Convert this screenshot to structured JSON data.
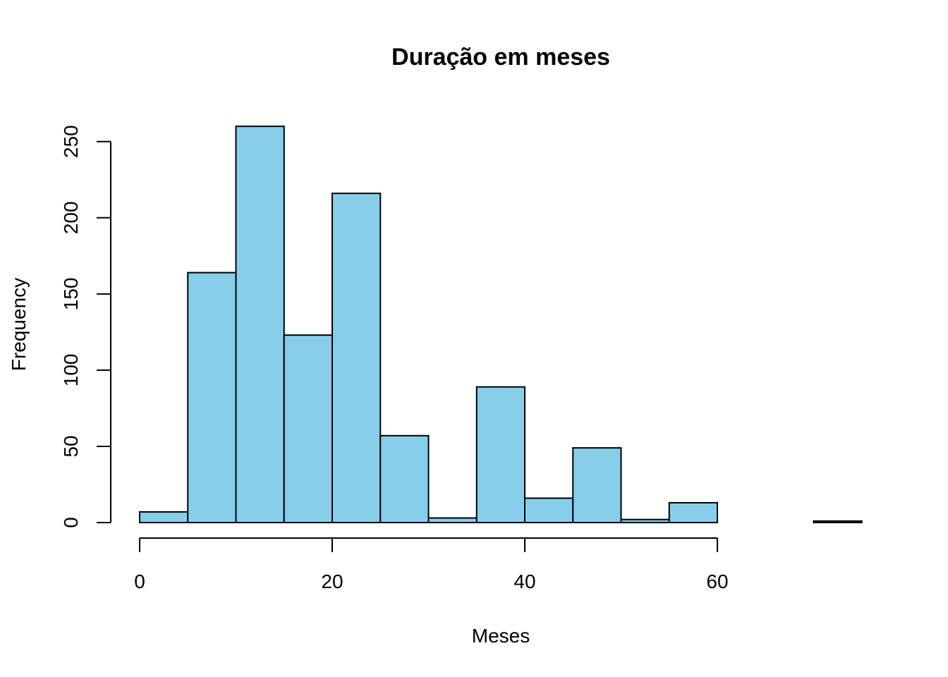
{
  "chart_data": {
    "type": "bar",
    "title": "Duração em meses",
    "xlabel": "Meses",
    "ylabel": "Frequency",
    "bin_edges": [
      0,
      5,
      10,
      15,
      20,
      25,
      30,
      35,
      40,
      45,
      50,
      55,
      60,
      65,
      70,
      75
    ],
    "values": [
      7,
      164,
      260,
      123,
      216,
      57,
      3,
      89,
      16,
      49,
      2,
      13,
      0,
      0,
      1
    ],
    "xticks": [
      0,
      20,
      40,
      60
    ],
    "yticks": [
      0,
      50,
      100,
      150,
      200,
      250
    ],
    "xlim": [
      0,
      75
    ],
    "ylim": [
      0,
      260
    ],
    "bar_color": "#87CEEB",
    "grid": false
  }
}
